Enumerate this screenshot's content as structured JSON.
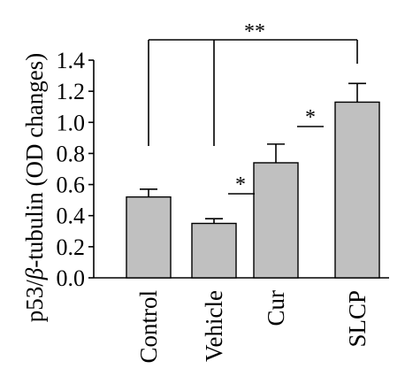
{
  "chart_data": {
    "type": "bar",
    "categories": [
      "Control",
      "Vehicle",
      "Cur",
      "SLCP"
    ],
    "values": [
      0.52,
      0.35,
      0.74,
      1.13
    ],
    "errors": [
      0.05,
      0.03,
      0.12,
      0.12
    ],
    "ylabel_parts": [
      "p53/",
      "β",
      "-tubulin (OD changes)"
    ],
    "yticks": [
      "0.0",
      "0.2",
      "0.4",
      "0.6",
      "0.8",
      "1.0",
      "1.2",
      "1.4"
    ],
    "ylim": [
      0,
      1.4
    ],
    "grid": false,
    "colors": {
      "bar": "#c0c0c0",
      "stroke": "#000000"
    },
    "significance": [
      {
        "groups": [
          "Control",
          "Vehicle",
          "SLCP"
        ],
        "label": "**"
      },
      {
        "groups": [
          "Vehicle",
          "Cur"
        ],
        "label": "*"
      },
      {
        "groups": [
          "Cur",
          "SLCP"
        ],
        "label": "*"
      }
    ]
  }
}
